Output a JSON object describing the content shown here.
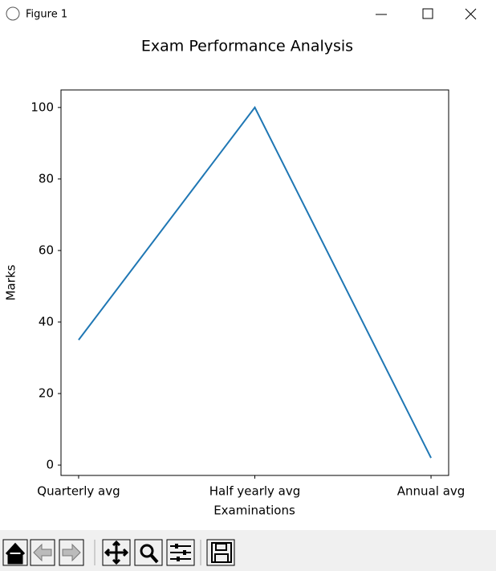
{
  "window": {
    "title": "Figure 1"
  },
  "chart_data": {
    "type": "line",
    "title": "Exam Performance Analysis",
    "x_label": "Examinations",
    "y_label": "Marks",
    "categories": [
      "Quarterly avg",
      "Half yearly avg",
      "Annual avg"
    ],
    "values": [
      35,
      100,
      2
    ],
    "color": "#1f77b4",
    "ylim": [
      -2.9,
      104.9
    ],
    "yticks": [
      0,
      20,
      40,
      60,
      80,
      100
    ],
    "grid": false
  }
}
